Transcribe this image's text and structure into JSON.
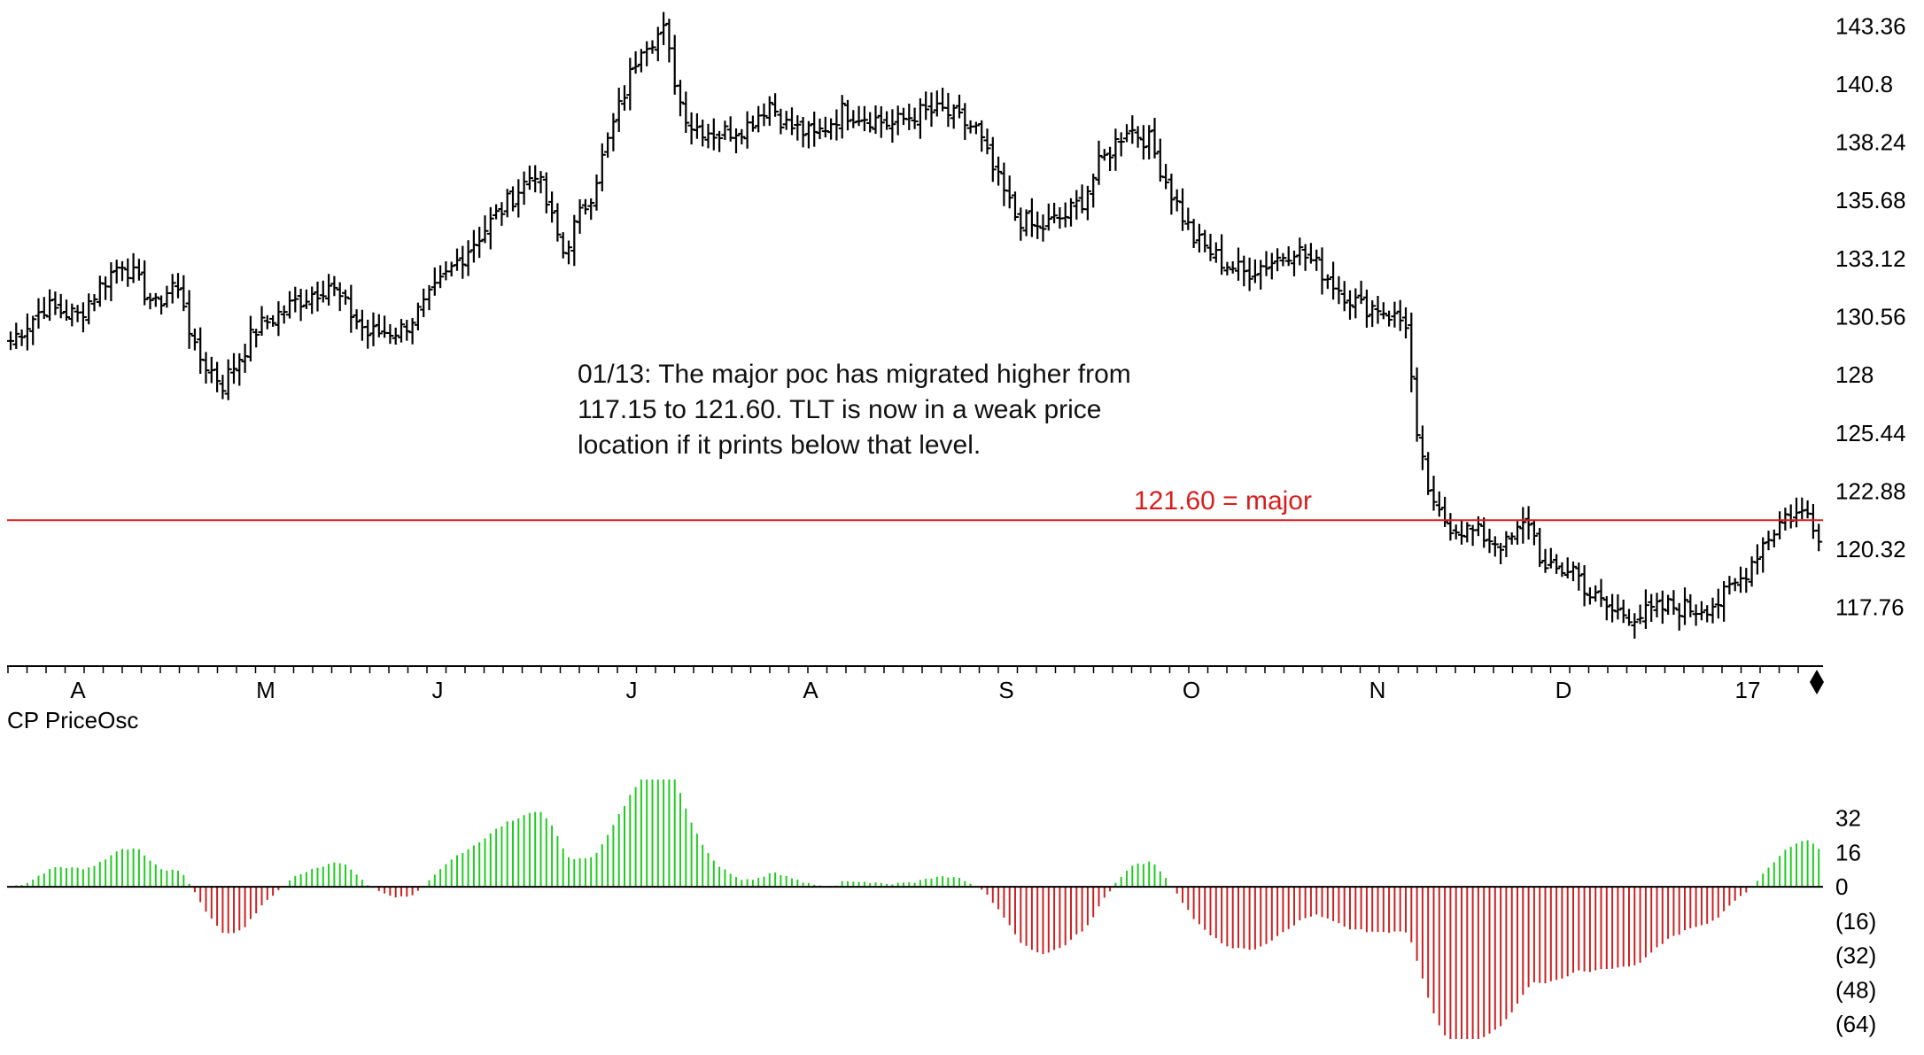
{
  "chart_data": [
    {
      "type": "bar",
      "chart_style": "ohlc",
      "y_ticks": [
        "143.36",
        "140.8",
        "138.24",
        "135.68",
        "133.12",
        "130.56",
        "128",
        "125.44",
        "122.88",
        "120.32",
        "117.76"
      ],
      "ylim": [
        116.5,
        143.8
      ],
      "x_month_labels": [
        "A",
        "M",
        "J",
        "J",
        "A",
        "S",
        "O",
        "N",
        "D",
        "17"
      ],
      "annotation_lines": [
        "01/13: The major poc has migrated higher from",
        "117.15 to 121.60.  TLT is now in a weak price",
        "location if it prints below that level."
      ],
      "reference_line": {
        "value": 121.6,
        "label": "121.60 = major",
        "color": "#d81e1e"
      },
      "waypoints": [
        [
          0,
          129.5
        ],
        [
          6,
          131
        ],
        [
          12,
          130.6
        ],
        [
          17,
          132.2
        ],
        [
          20,
          133
        ],
        [
          26,
          131
        ],
        [
          29,
          132
        ],
        [
          31,
          131.2
        ],
        [
          33,
          129
        ],
        [
          38,
          127.6
        ],
        [
          44,
          130
        ],
        [
          51,
          131.2
        ],
        [
          57,
          132
        ],
        [
          60,
          131
        ],
        [
          64,
          129.8
        ],
        [
          70,
          130
        ],
        [
          74,
          131
        ],
        [
          80,
          133
        ],
        [
          87,
          135
        ],
        [
          94,
          137
        ],
        [
          97,
          134.8
        ],
        [
          99,
          133.4
        ],
        [
          101,
          134.5
        ],
        [
          104,
          136
        ],
        [
          108,
          139
        ],
        [
          113,
          142.6
        ],
        [
          117,
          143.1
        ],
        [
          120,
          140
        ],
        [
          122,
          139
        ],
        [
          127,
          138.6
        ],
        [
          132,
          139
        ],
        [
          136,
          140
        ],
        [
          139,
          139
        ],
        [
          144,
          138.5
        ],
        [
          149,
          139.6
        ],
        [
          153,
          139.4
        ],
        [
          158,
          139
        ],
        [
          162,
          139.5
        ],
        [
          167,
          139.6
        ],
        [
          173,
          138.8
        ],
        [
          176,
          137
        ],
        [
          180,
          135
        ],
        [
          184,
          134.4
        ],
        [
          189,
          135
        ],
        [
          192,
          135.7
        ],
        [
          195,
          137.2
        ],
        [
          200,
          138.9
        ],
        [
          204,
          138.3
        ],
        [
          208,
          136
        ],
        [
          212,
          134
        ],
        [
          217,
          133
        ],
        [
          221,
          132.5
        ],
        [
          226,
          133
        ],
        [
          230,
          133.6
        ],
        [
          234,
          132.8
        ],
        [
          238,
          131.8
        ],
        [
          242,
          131
        ],
        [
          245,
          131
        ],
        [
          248,
          130.5
        ],
        [
          250,
          130.3
        ],
        [
          251,
          127.8
        ],
        [
          252,
          125
        ],
        [
          255,
          122
        ],
        [
          258,
          121.4
        ],
        [
          263,
          121
        ],
        [
          268,
          120.5
        ],
        [
          272,
          121.6
        ],
        [
          275,
          119.3
        ],
        [
          280,
          119.5
        ],
        [
          283,
          118.3
        ],
        [
          287,
          117.6
        ],
        [
          292,
          117.4
        ],
        [
          297,
          117.8
        ],
        [
          302,
          117.7
        ],
        [
          306,
          118
        ],
        [
          310,
          119
        ],
        [
          314,
          120.6
        ],
        [
          318,
          121.8
        ],
        [
          322,
          121.9
        ],
        [
          324,
          121.1
        ]
      ],
      "osc_y_ticks": [
        "32",
        "16",
        "0",
        "(16)",
        "(32)",
        "(48)",
        "(64)"
      ],
      "osc_ylim": [
        -71,
        50
      ],
      "osc_colors": {
        "positive": "#22cc22",
        "negative": "#cc2222"
      }
    }
  ],
  "panels": {
    "oscillator_title": "CP PriceOsc"
  },
  "colors": {
    "price_bars": "#000000",
    "axis": "#000000",
    "reference_line": "#d81e1e"
  }
}
